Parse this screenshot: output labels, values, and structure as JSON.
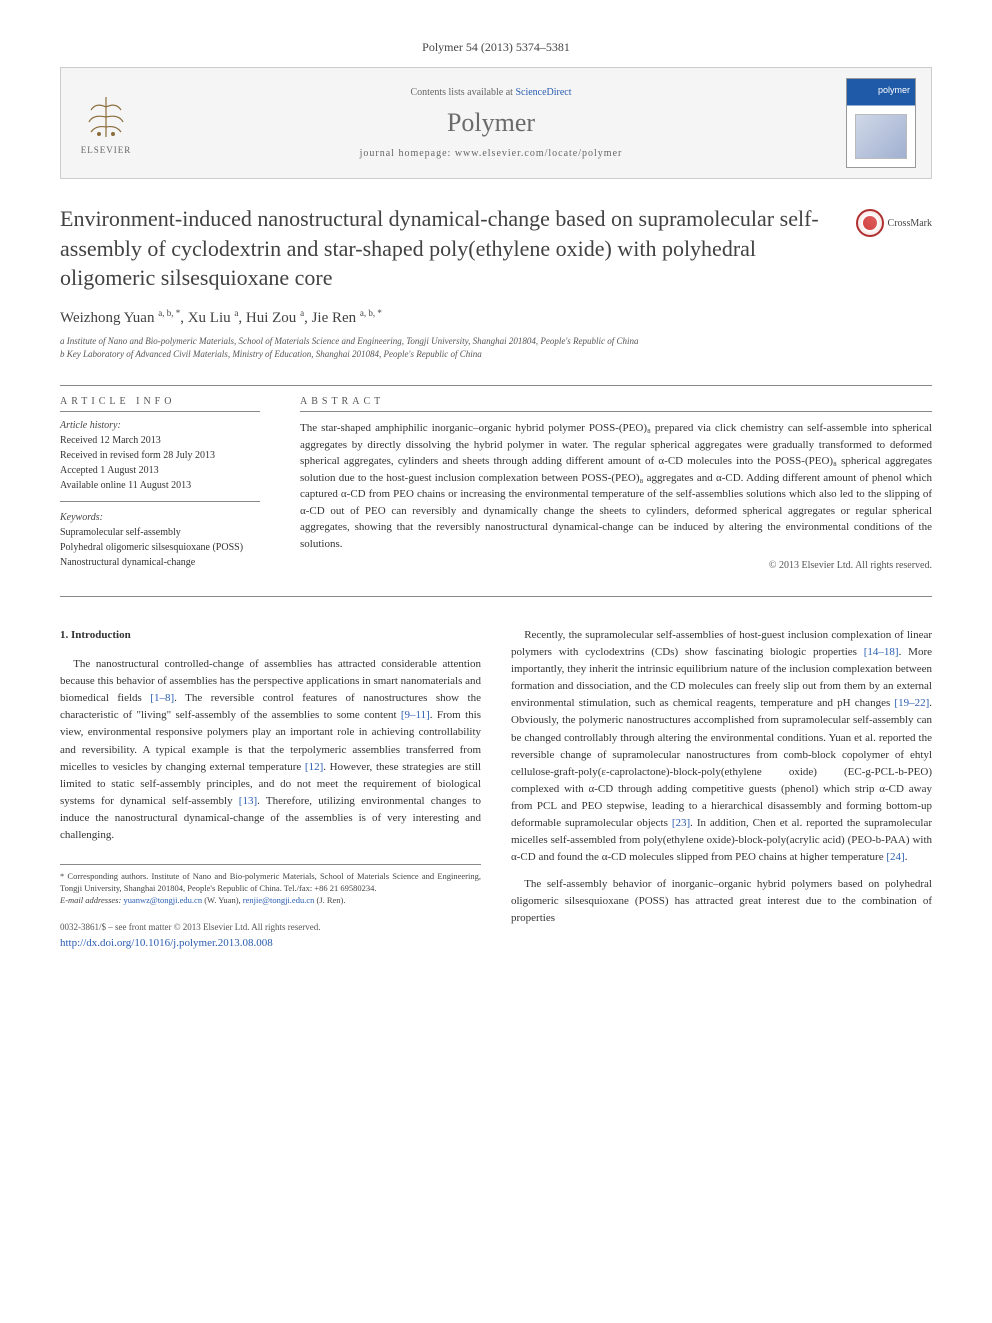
{
  "citation": "Polymer 54 (2013) 5374–5381",
  "banner": {
    "contents_prefix": "Contents lists available at ",
    "contents_link": "ScienceDirect",
    "journal": "Polymer",
    "homepage": "journal homepage: www.elsevier.com/locate/polymer",
    "publisher": "ELSEVIER",
    "cover_label": "polymer"
  },
  "crossmark_label": "CrossMark",
  "title": "Environment-induced nanostructural dynamical-change based on supramolecular self-assembly of cyclodextrin and star-shaped poly(ethylene oxide) with polyhedral oligomeric silsesquioxane core",
  "authors_html": "Weizhong Yuan <sup>a, b, *</sup>, Xu Liu <sup>a</sup>, Hui Zou <sup>a</sup>, Jie Ren <sup>a, b, *</sup>",
  "affiliations": {
    "a": "a Institute of Nano and Bio-polymeric Materials, School of Materials Science and Engineering, Tongji University, Shanghai 201804, People's Republic of China",
    "b": "b Key Laboratory of Advanced Civil Materials, Ministry of Education, Shanghai 201084, People's Republic of China"
  },
  "article_info_heading": "ARTICLE INFO",
  "history": {
    "label": "Article history:",
    "received": "Received 12 March 2013",
    "revised": "Received in revised form 28 July 2013",
    "accepted": "Accepted 1 August 2013",
    "online": "Available online 11 August 2013"
  },
  "keywords": {
    "label": "Keywords:",
    "items": [
      "Supramolecular self-assembly",
      "Polyhedral oligomeric silsesquioxane (POSS)",
      "Nanostructural dynamical-change"
    ]
  },
  "abstract_heading": "ABSTRACT",
  "abstract": "The star-shaped amphiphilic inorganic–organic hybrid polymer POSS-(PEO)₈ prepared via click chemistry can self-assemble into spherical aggregates by directly dissolving the hybrid polymer in water. The regular spherical aggregates were gradually transformed to deformed spherical aggregates, cylinders and sheets through adding different amount of α-CD molecules into the POSS-(PEO)₈ spherical aggregates solution due to the host-guest inclusion complexation between POSS-(PEO)₈ aggregates and α-CD. Adding different amount of phenol which captured α-CD from PEO chains or increasing the environmental temperature of the self-assemblies solutions which also led to the slipping of α-CD out of PEO can reversibly and dynamically change the sheets to cylinders, deformed spherical aggregates or regular spherical aggregates, showing that the reversibly nanostructural dynamical-change can be induced by altering the environmental conditions of the solutions.",
  "copyright": "© 2013 Elsevier Ltd. All rights reserved.",
  "section_heading": "1. Introduction",
  "body": {
    "p1": "The nanostructural controlled-change of assemblies has attracted considerable attention because this behavior of assemblies has the perspective applications in smart nanomaterials and biomedical fields [1–8]. The reversible control features of nanostructures show the characteristic of \"living\" self-assembly of the assemblies to some content [9–11]. From this view, environmental responsive polymers play an important role in achieving controllability and reversibility. A typical example is that the terpolymeric assemblies transferred from micelles to vesicles by changing external temperature [12]. However, these strategies are still limited to static self-assembly principles, and do not meet the requirement of biological systems for dynamical self-assembly [13]. Therefore, utilizing environmental changes to induce the nanostructural dynamical-change of the assemblies is of very interesting and challenging.",
    "p2": "Recently, the supramolecular self-assemblies of host-guest inclusion complexation of linear polymers with cyclodextrins (CDs) show fascinating biologic properties [14–18]. More importantly, they inherit the intrinsic equilibrium nature of the inclusion complexation between formation and dissociation, and the CD molecules can freely slip out from them by an external environmental stimulation, such as chemical reagents, temperature and pH changes [19–22]. Obviously, the polymeric nanostructures accomplished from supramolecular self-assembly can be changed controllably through altering the environmental conditions. Yuan et al. reported the reversible change of supramolecular nanostructures from comb-block copolymer of ehtyl cellulose-graft-poly(ε-caprolactone)-block-poly(ethylene oxide) (EC-g-PCL-b-PEO) complexed with α-CD through adding competitive guests (phenol) which strip α-CD away from PCL and PEO stepwise, leading to a hierarchical disassembly and forming bottom-up deformable supramolecular objects [23]. In addition, Chen et al. reported the supramolecular micelles self-assembled from poly(ethylene oxide)-block-poly(acrylic acid) (PEO-b-PAA) with α-CD and found the α-CD molecules slipped from PEO chains at higher temperature [24].",
    "p3": "The self-assembly behavior of inorganic–organic hybrid polymers based on polyhedral oligomeric silsesquioxane (POSS) has attracted great interest due to the combination of properties"
  },
  "footnote": {
    "corr": "* Corresponding authors. Institute of Nano and Bio-polymeric Materials, School of Materials Science and Engineering, Tongji University, Shanghai 201804, People's Republic of China. Tel./fax: +86 21 69580234.",
    "emails_label": "E-mail addresses:",
    "email1": "yuanwz@tongji.edu.cn",
    "email1_name": "(W. Yuan),",
    "email2": "renjie@tongji.edu.cn",
    "email2_name": "(J. Ren)."
  },
  "bottom": {
    "issn": "0032-3861/$ – see front matter © 2013 Elsevier Ltd. All rights reserved.",
    "doi_label": "http://dx.doi.org/10.1016/j.polymer.2013.08.008"
  },
  "refs": {
    "r1": "[1–8]",
    "r2": "[9–11]",
    "r3": "[12]",
    "r4": "[13]",
    "r5": "[14–18]",
    "r6": "[19–22]",
    "r7": "[23]",
    "r8": "[24]"
  }
}
